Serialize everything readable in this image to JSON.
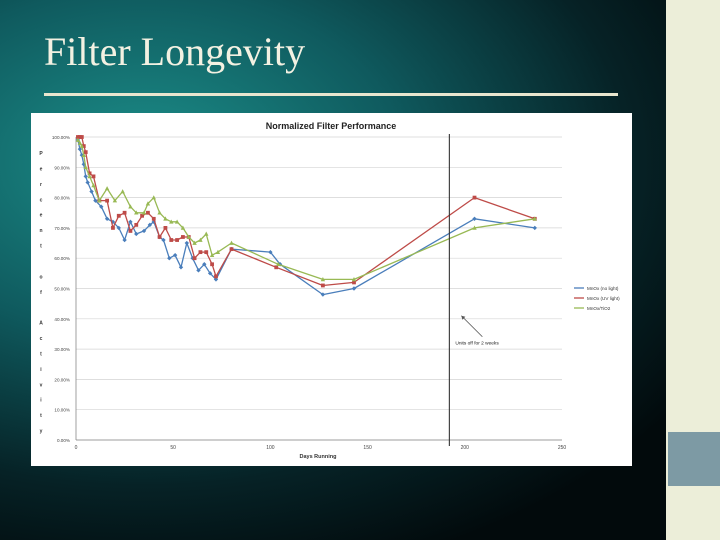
{
  "slide": {
    "title": "Filter Longevity"
  },
  "colors": {
    "accent_panel": "#eceed9",
    "accent_block": "#7d9aa4"
  },
  "chart_data": {
    "type": "line",
    "title": "Normalized Filter Performance",
    "xlabel": "Days Running",
    "ylabel": "Percent of Activity",
    "xlim": [
      0,
      250
    ],
    "ylim": [
      0,
      100
    ],
    "x_ticks": [
      0,
      50,
      100,
      150,
      200,
      250
    ],
    "y_ticks": [
      "0.00%",
      "10.00%",
      "20.00%",
      "30.00%",
      "40.00%",
      "50.00%",
      "60.00%",
      "70.00%",
      "80.00%",
      "90.00%",
      "100.00%"
    ],
    "legend_position": "right",
    "series": [
      {
        "name": "MnOx (no light)",
        "color": "#4a7ebb",
        "points": [
          [
            1,
            99
          ],
          [
            2,
            96
          ],
          [
            3,
            94
          ],
          [
            4,
            91
          ],
          [
            5,
            87
          ],
          [
            6,
            85
          ],
          [
            8,
            82
          ],
          [
            10,
            79
          ],
          [
            13,
            77
          ],
          [
            16,
            73
          ],
          [
            19,
            72
          ],
          [
            22,
            70
          ],
          [
            25,
            66
          ],
          [
            28,
            72
          ],
          [
            31,
            68
          ],
          [
            35,
            69
          ],
          [
            38,
            71
          ],
          [
            40,
            72
          ],
          [
            43,
            67
          ],
          [
            45,
            66
          ],
          [
            48,
            60
          ],
          [
            51,
            61
          ],
          [
            54,
            57
          ],
          [
            57,
            65
          ],
          [
            60,
            60
          ],
          [
            63,
            56
          ],
          [
            66,
            58
          ],
          [
            69,
            55
          ],
          [
            72,
            53
          ],
          [
            80,
            63
          ],
          [
            100,
            62
          ],
          [
            105,
            58
          ],
          [
            127,
            48
          ],
          [
            143,
            50
          ],
          [
            205,
            73
          ],
          [
            236,
            70
          ]
        ]
      },
      {
        "name": "MnOx (UV light)",
        "color": "#be4b48",
        "points": [
          [
            1,
            100
          ],
          [
            2,
            100
          ],
          [
            3,
            100
          ],
          [
            4,
            97
          ],
          [
            5,
            95
          ],
          [
            7,
            88
          ],
          [
            9,
            87
          ],
          [
            12,
            79
          ],
          [
            16,
            79
          ],
          [
            19,
            70
          ],
          [
            22,
            74
          ],
          [
            25,
            75
          ],
          [
            28,
            69
          ],
          [
            31,
            71
          ],
          [
            34,
            74
          ],
          [
            37,
            75
          ],
          [
            40,
            73
          ],
          [
            43,
            67
          ],
          [
            46,
            70
          ],
          [
            49,
            66
          ],
          [
            52,
            66
          ],
          [
            55,
            67
          ],
          [
            58,
            67
          ],
          [
            61,
            60
          ],
          [
            64,
            62
          ],
          [
            67,
            62
          ],
          [
            70,
            58
          ],
          [
            72,
            54
          ],
          [
            80,
            63
          ],
          [
            103,
            57
          ],
          [
            127,
            51
          ],
          [
            143,
            52
          ],
          [
            205,
            80
          ],
          [
            236,
            73
          ]
        ]
      },
      {
        "name": "MnOx/TiO2",
        "color": "#98b954",
        "points": [
          [
            1,
            99
          ],
          [
            2,
            98
          ],
          [
            3,
            97
          ],
          [
            4,
            94
          ],
          [
            5,
            90
          ],
          [
            7,
            87
          ],
          [
            9,
            84
          ],
          [
            12,
            79
          ],
          [
            16,
            83
          ],
          [
            20,
            79
          ],
          [
            24,
            82
          ],
          [
            28,
            77
          ],
          [
            31,
            75
          ],
          [
            35,
            75
          ],
          [
            37,
            78
          ],
          [
            40,
            80
          ],
          [
            43,
            75
          ],
          [
            46,
            73
          ],
          [
            49,
            72
          ],
          [
            52,
            72
          ],
          [
            55,
            70
          ],
          [
            58,
            67
          ],
          [
            61,
            65
          ],
          [
            64,
            66
          ],
          [
            67,
            68
          ],
          [
            70,
            61
          ],
          [
            73,
            62
          ],
          [
            80,
            65
          ],
          [
            104,
            58
          ],
          [
            127,
            53
          ],
          [
            143,
            53
          ],
          [
            205,
            70
          ],
          [
            236,
            73
          ]
        ]
      }
    ],
    "annotations": [
      {
        "text": "Units off for 2 weeks",
        "x": 190,
        "y": 42
      }
    ]
  }
}
